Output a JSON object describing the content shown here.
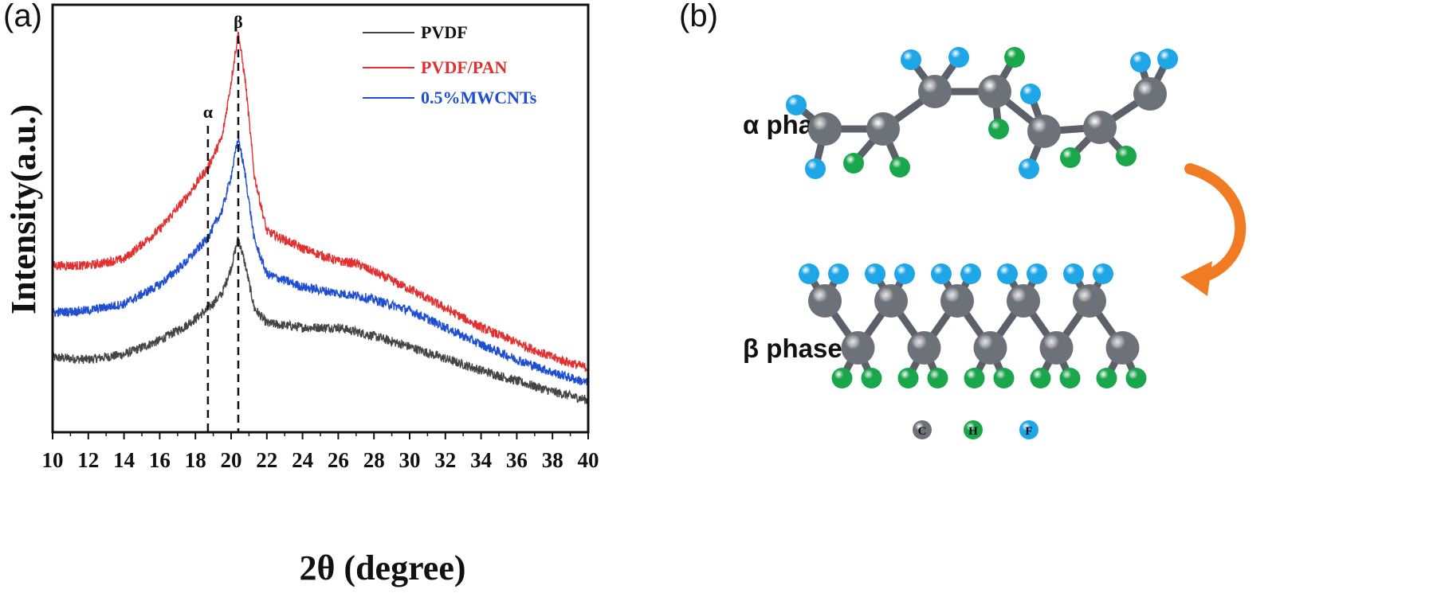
{
  "panel_a_label": "(a)",
  "panel_b_label": "(b)",
  "chart_data": {
    "type": "line",
    "xlabel": "2θ (degree)",
    "ylabel": "Intensity(a.u.)",
    "xlim": [
      10,
      40
    ],
    "x_ticks": [
      "10",
      "12",
      "14",
      "16",
      "18",
      "20",
      "22",
      "24",
      "26",
      "28",
      "30",
      "32",
      "34",
      "36",
      "38",
      "40"
    ],
    "legend_position": "top-right",
    "annotations": [
      {
        "text": "α",
        "x": 18.7
      },
      {
        "text": "β",
        "x": 20.4
      }
    ],
    "series": [
      {
        "name": "PVDF",
        "color": "#444444",
        "points": [
          [
            10,
            0.175
          ],
          [
            12,
            0.17
          ],
          [
            14,
            0.182
          ],
          [
            16,
            0.215
          ],
          [
            17.5,
            0.25
          ],
          [
            18.7,
            0.288
          ],
          [
            19.5,
            0.325
          ],
          [
            20.0,
            0.385
          ],
          [
            20.4,
            0.455
          ],
          [
            20.8,
            0.39
          ],
          [
            21.3,
            0.29
          ],
          [
            22,
            0.255
          ],
          [
            24,
            0.245
          ],
          [
            26,
            0.245
          ],
          [
            27,
            0.235
          ],
          [
            28,
            0.225
          ],
          [
            30,
            0.2
          ],
          [
            32,
            0.172
          ],
          [
            34,
            0.145
          ],
          [
            36,
            0.12
          ],
          [
            38,
            0.095
          ],
          [
            40,
            0.075
          ]
        ]
      },
      {
        "name": "PVDF/PAN",
        "color": "#e03030",
        "points": [
          [
            10,
            0.39
          ],
          [
            12,
            0.39
          ],
          [
            14,
            0.405
          ],
          [
            16,
            0.475
          ],
          [
            17.5,
            0.55
          ],
          [
            18.7,
            0.62
          ],
          [
            19.5,
            0.69
          ],
          [
            20.0,
            0.82
          ],
          [
            20.4,
            0.935
          ],
          [
            20.8,
            0.82
          ],
          [
            21.3,
            0.6
          ],
          [
            22,
            0.47
          ],
          [
            24,
            0.43
          ],
          [
            26,
            0.4
          ],
          [
            27,
            0.395
          ],
          [
            28,
            0.375
          ],
          [
            30,
            0.335
          ],
          [
            32,
            0.29
          ],
          [
            34,
            0.245
          ],
          [
            36,
            0.21
          ],
          [
            38,
            0.175
          ],
          [
            40,
            0.15
          ]
        ]
      },
      {
        "name": "0.5%MWCNTs",
        "color": "#1f4fd0",
        "points": [
          [
            10,
            0.28
          ],
          [
            12,
            0.285
          ],
          [
            14,
            0.3
          ],
          [
            16,
            0.345
          ],
          [
            17.5,
            0.4
          ],
          [
            18.7,
            0.455
          ],
          [
            19.5,
            0.52
          ],
          [
            20.0,
            0.6
          ],
          [
            20.4,
            0.69
          ],
          [
            20.8,
            0.6
          ],
          [
            21.3,
            0.45
          ],
          [
            22,
            0.37
          ],
          [
            24,
            0.34
          ],
          [
            26,
            0.325
          ],
          [
            27,
            0.32
          ],
          [
            28,
            0.31
          ],
          [
            30,
            0.285
          ],
          [
            32,
            0.245
          ],
          [
            34,
            0.205
          ],
          [
            36,
            0.17
          ],
          [
            38,
            0.14
          ],
          [
            40,
            0.115
          ]
        ]
      }
    ]
  },
  "panel_b": {
    "alpha_label": "α phase",
    "beta_label": "β phase",
    "atom_key": [
      "C",
      "H",
      "F"
    ],
    "colors": {
      "C": "#6d7178",
      "H": "#1aa64a",
      "F": "#1fa6e6",
      "arrow": "#f07b22"
    }
  }
}
